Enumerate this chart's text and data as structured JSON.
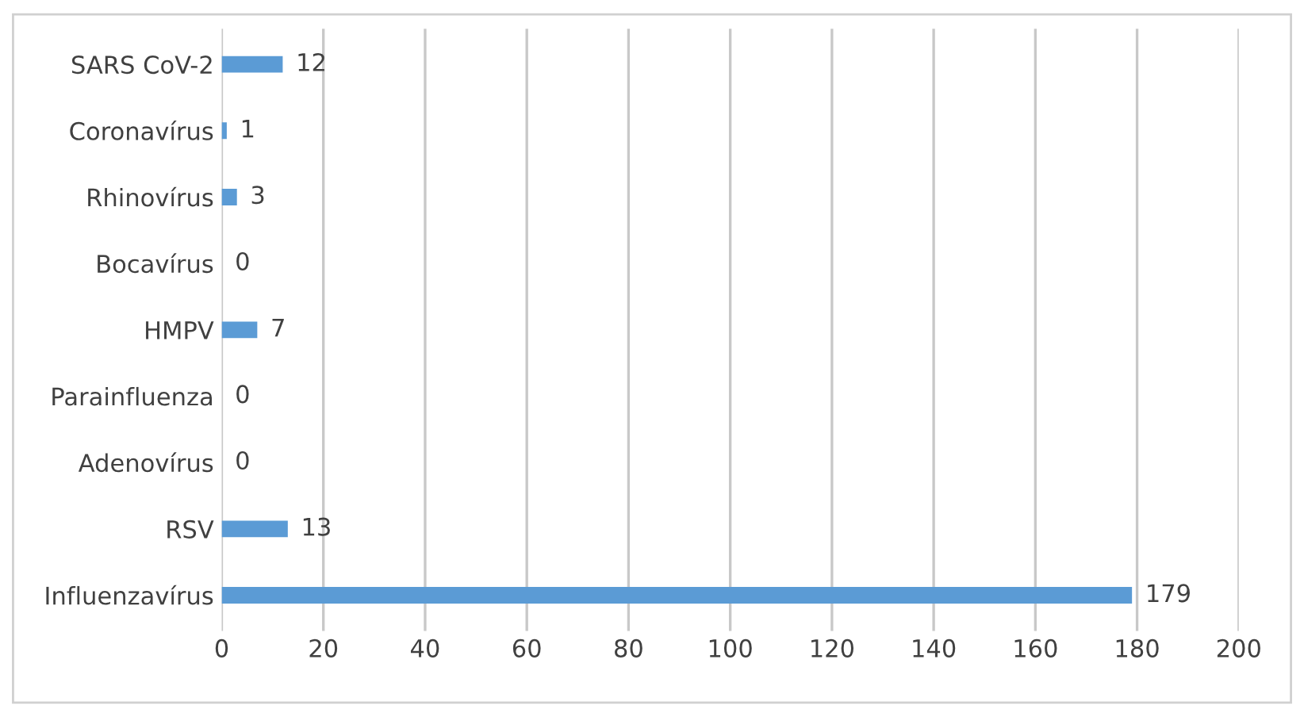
{
  "chart_data": {
    "type": "bar",
    "orientation": "horizontal",
    "categories": [
      "SARS CoV-2",
      "Coronavírus",
      "Rhinovírus",
      "Bocavírus",
      "HMPV",
      "Parainfluenza",
      "Adenovírus",
      "RSV",
      "Influenzavírus"
    ],
    "values": [
      12,
      1,
      3,
      0,
      7,
      0,
      0,
      13,
      179
    ],
    "color": "#5b9bd5",
    "xlim": [
      0,
      200
    ],
    "xticks": [
      0,
      20,
      40,
      60,
      80,
      100,
      120,
      140,
      160,
      180,
      200
    ],
    "grid": "x",
    "data_labels": true
  }
}
